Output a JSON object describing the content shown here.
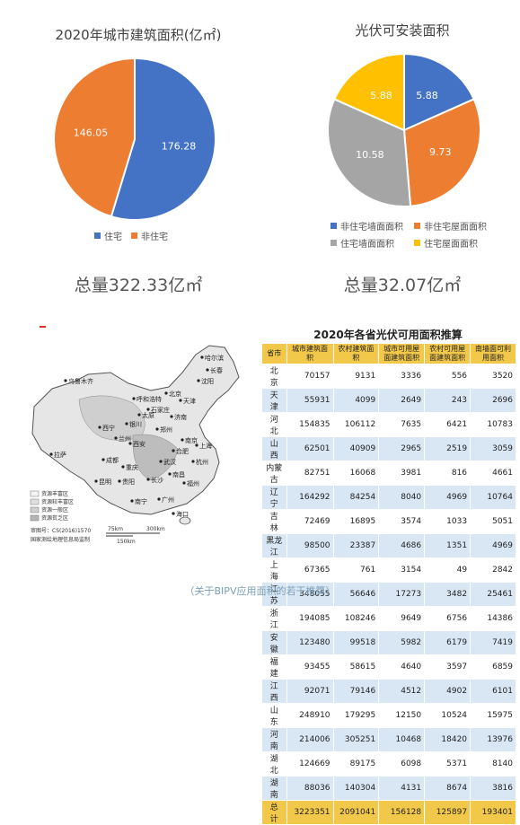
{
  "chart_data": [
    {
      "type": "pie",
      "title": "2020年城市建筑面积(亿㎡)",
      "categories": [
        "住宅",
        "非住宅"
      ],
      "values": [
        176.28,
        146.05
      ],
      "colors": [
        "#4472C4",
        "#ED7D31"
      ],
      "legend_position": "bottom",
      "total_label": "总量322.33亿㎡"
    },
    {
      "type": "pie",
      "title": "光伏可安装面积",
      "categories": [
        "非住宅墙面面积",
        "非住宅屋面面积",
        "住宅墙面面积",
        "住宅屋面面积"
      ],
      "values": [
        5.88,
        9.73,
        10.58,
        5.88
      ],
      "colors": [
        "#4472C4",
        "#ED7D31",
        "#A5A5A5",
        "#FFC000"
      ],
      "legend_position": "bottom",
      "total_label": "总量32.07亿㎡"
    },
    {
      "type": "table",
      "title": "2020年各省光伏可用面积推算",
      "columns": [
        "省市",
        "城市建筑面积",
        "农村建筑面积",
        "城市可用屋面建筑面积",
        "农村可用屋面建筑面积",
        "南墙面可利用面积"
      ],
      "rows": [
        [
          "北 京",
          "70157",
          "9131",
          "3336",
          "556",
          "3520"
        ],
        [
          "天 津",
          "55931",
          "4099",
          "2649",
          "243",
          "2696"
        ],
        [
          "河 北",
          "154835",
          "106112",
          "7635",
          "6421",
          "10783"
        ],
        [
          "山 西",
          "62501",
          "40909",
          "2965",
          "2519",
          "3059"
        ],
        [
          "内蒙古",
          "82751",
          "16068",
          "3981",
          "816",
          "4661"
        ],
        [
          "辽 宁",
          "164292",
          "84254",
          "8040",
          "4969",
          "10764"
        ],
        [
          "吉 林",
          "72469",
          "16895",
          "3574",
          "1033",
          "5051"
        ],
        [
          "黑龙江",
          "98500",
          "23387",
          "4686",
          "1351",
          "4969"
        ],
        [
          "上 海",
          "67365",
          "761",
          "3154",
          "49",
          "2842"
        ],
        [
          "江 苏",
          "348055",
          "56646",
          "17273",
          "3482",
          "25461"
        ],
        [
          "浙 江",
          "194085",
          "108246",
          "9649",
          "6756",
          "14386"
        ],
        [
          "安 徽",
          "123480",
          "99518",
          "5982",
          "6179",
          "7419"
        ],
        [
          "福 建",
          "93455",
          "58615",
          "4640",
          "3597",
          "6859"
        ],
        [
          "江 西",
          "92071",
          "79146",
          "4512",
          "4902",
          "6101"
        ],
        [
          "山 东",
          "248910",
          "179295",
          "12150",
          "10524",
          "15975"
        ],
        [
          "河 南",
          "214006",
          "305251",
          "10468",
          "18420",
          "13976"
        ],
        [
          "湖 北",
          "124669",
          "89175",
          "6098",
          "5371",
          "8140"
        ],
        [
          "湖 南",
          "88036",
          "140304",
          "4131",
          "8674",
          "3816"
        ],
        [
          "总 计",
          "3223351",
          "2091041",
          "156128",
          "125897",
          "193401"
        ]
      ]
    }
  ],
  "map": {
    "cities": [
      "哈尔滨",
      "长春",
      "沈阳",
      "乌鲁木齐",
      "呼和浩特",
      "北京",
      "天津",
      "石家庄",
      "太原",
      "济南",
      "西宁",
      "兰州",
      "郑州",
      "银川",
      "西安",
      "南京",
      "上海",
      "合肥",
      "拉萨",
      "成都",
      "武汉",
      "杭州",
      "重庆",
      "南昌",
      "长沙",
      "福州",
      "昆明",
      "贵阳",
      "广州",
      "南宁",
      "海口"
    ],
    "legend": [
      "资源丰富区",
      "资源较丰富区",
      "资源一般区",
      "资源贫乏区"
    ],
    "approval": "审图号：CS(2016)1570",
    "agency": "国家测绘地理信息局监制",
    "scale_a": "75km",
    "scale_b": "300km",
    "scale_c": "150km"
  },
  "caption": "（关于BIPV应用面积的若干推算）",
  "colors": {
    "header": "#F2C84B",
    "row_alt": "#D9E7F5",
    "red_mark": "#E0322B"
  }
}
